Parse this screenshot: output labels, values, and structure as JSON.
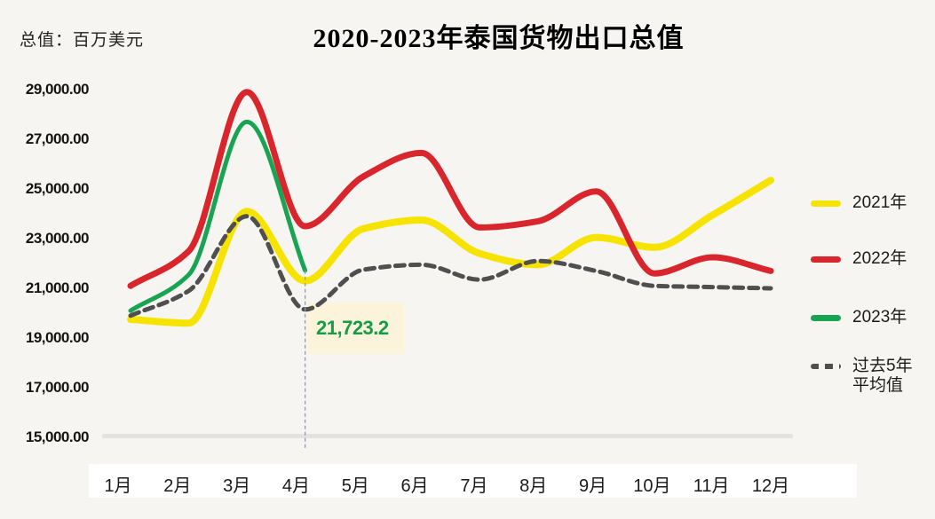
{
  "header": {
    "title": "2020-2023年泰国货物出口总值",
    "unit_label": "总值：百万美元"
  },
  "chart_data": {
    "type": "line",
    "title": "2020-2023年泰国货物出口总值",
    "ylabel": "总值：百万美元",
    "xlabel": "",
    "grid": false,
    "legend_position": "right",
    "categories": [
      "1月",
      "2月",
      "3月",
      "4月",
      "5月",
      "6月",
      "7月",
      "8月",
      "9月",
      "10月",
      "11月",
      "12月"
    ],
    "ylim": [
      15000,
      29000
    ],
    "y_ticks": [
      29000,
      27000,
      25000,
      23000,
      21000,
      19000,
      17000,
      15000
    ],
    "y_tick_labels": [
      "29,000.00",
      "27,000.00",
      "25,000.00",
      "23,000.00",
      "21,000.00",
      "19,000.00",
      "17,000.00",
      "15,000.00"
    ],
    "series": [
      {
        "name": "2021年",
        "color": "#f7e300",
        "style": "solid",
        "width": 8,
        "values": [
          19750,
          19600,
          24100,
          21300,
          23400,
          23750,
          22400,
          21950,
          23050,
          22650,
          23950,
          25350
        ]
      },
      {
        "name": "2022年",
        "color": "#d8262c",
        "style": "solid",
        "width": 7,
        "values": [
          21100,
          22500,
          28900,
          23500,
          25500,
          26450,
          23450,
          23700,
          24900,
          21600,
          22250,
          21700
        ]
      },
      {
        "name": "2023年",
        "color": "#18a452",
        "style": "solid",
        "width": 5,
        "values": [
          20100,
          21550,
          27700,
          21723.2
        ]
      },
      {
        "name": "过去5年平均值",
        "color": "#4f4f4f",
        "style": "dashed",
        "width": 5,
        "values": [
          19900,
          20900,
          23900,
          20150,
          21750,
          21950,
          21350,
          22100,
          21700,
          21100,
          21050,
          21000
        ]
      }
    ],
    "annotation": {
      "text": "21,723.2",
      "month": "4月",
      "month_index": 3,
      "value": 21723.2,
      "text_color": "#169c49",
      "box_color": "#fbf3da",
      "line_color": "#7f9dc9"
    }
  },
  "legend": {
    "items": [
      {
        "label": "2021年",
        "color": "#f7e300",
        "dashed": false
      },
      {
        "label": "2022年",
        "color": "#d8262c",
        "dashed": false
      },
      {
        "label": "2023年",
        "color": "#18a452",
        "dashed": false
      },
      {
        "label": "过去5年平均值",
        "line1": "过去5年",
        "line2": "平均值",
        "color": "#4f4f4f",
        "dashed": true
      }
    ]
  }
}
